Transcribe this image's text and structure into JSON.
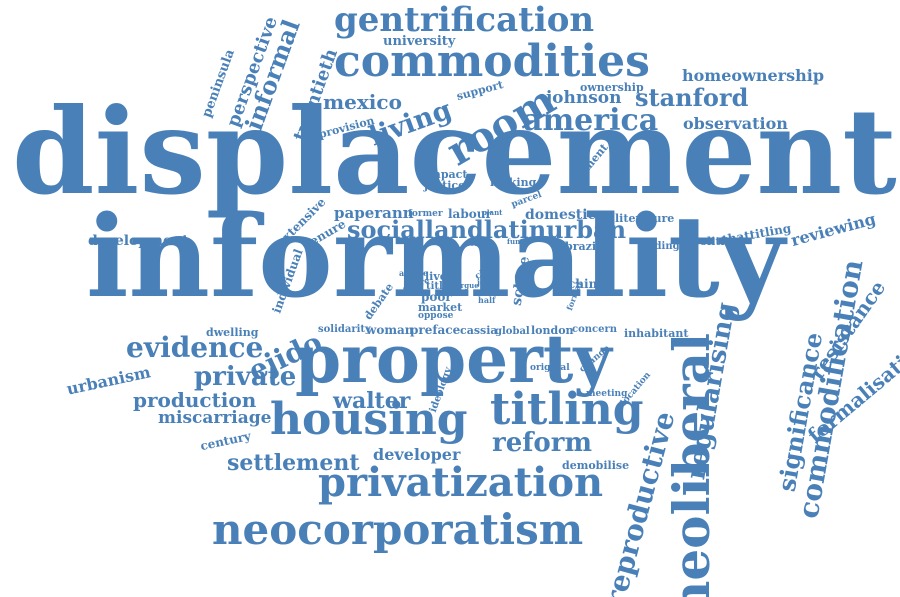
{
  "color": "#4a80b8",
  "words": [
    "displacement",
    "informality",
    "property",
    "housing",
    "titling",
    "privatization",
    "neocorporatism",
    "neoliberal",
    "commodities",
    "gentrification",
    "america",
    "room",
    "living",
    "mexico",
    "stanford",
    "johnson",
    "homeownership",
    "observation",
    "university",
    "informal",
    "perspective",
    "peninsula",
    "twentieth",
    "provision",
    "support",
    "ownership",
    "evidence",
    "ejido",
    "private",
    "production",
    "miscarriage",
    "walter",
    "settlement",
    "developer",
    "reform",
    "urbanism",
    "century",
    "dwelling",
    "development",
    "reproductive",
    "regularising",
    "commodification",
    "significance",
    "resistance",
    "formalisation",
    "reviewing",
    "political",
    "thattitling",
    "sociallandlatinurban",
    "paperann",
    "domestic",
    "brazil",
    "finding",
    "literature",
    "extensive",
    "tenure",
    "individual",
    "former",
    "labour",
    "impact",
    "justice",
    "making",
    "argument",
    "parcel",
    "article",
    "desire",
    "live",
    "title",
    "poor",
    "market",
    "oppose",
    "city",
    "john",
    "roth",
    "half",
    "schlee",
    "chintz",
    "formal",
    "debate",
    "solidarity",
    "woman",
    "preface",
    "cassia",
    "global",
    "london",
    "concern",
    "inhabitant",
    "original",
    "change",
    "ideology",
    "meeting",
    "location",
    "demobilise",
    "argue",
    "plant",
    "lost",
    "fund"
  ]
}
